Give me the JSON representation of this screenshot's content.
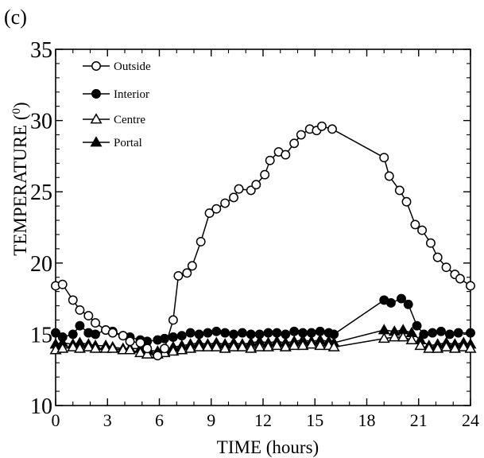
{
  "panel_label": "(c)",
  "chart_data": {
    "type": "line",
    "xlabel": "TIME (hours)",
    "ylabel_prefix": "TEMPERATURE (",
    "ylabel_superscript": "0",
    "ylabel_suffix": ")",
    "xlim": [
      0,
      24
    ],
    "ylim": [
      10,
      35
    ],
    "x_ticks": [
      0,
      3,
      6,
      9,
      12,
      15,
      18,
      21,
      24
    ],
    "y_ticks": [
      10,
      15,
      20,
      25,
      30,
      35
    ],
    "grid": false,
    "legend_position": "top-left",
    "series": [
      {
        "name": "Outside",
        "marker": "circle-open",
        "x": [
          0.0,
          0.4,
          1.0,
          1.4,
          1.9,
          2.3,
          2.9,
          3.3,
          3.9,
          4.3,
          4.9,
          5.3,
          5.9,
          6.3,
          6.8,
          7.1,
          7.6,
          7.9,
          8.4,
          8.9,
          9.3,
          9.8,
          10.3,
          10.6,
          11.3,
          11.6,
          12.1,
          12.4,
          12.9,
          13.3,
          13.8,
          14.2,
          14.7,
          15.1,
          15.4,
          16.0,
          19.0,
          19.3,
          19.9,
          20.3,
          20.8,
          21.2,
          21.7,
          22.1,
          22.6,
          23.1,
          23.4,
          24.0
        ],
        "values": [
          18.4,
          18.5,
          17.4,
          16.7,
          16.3,
          15.8,
          15.3,
          15.1,
          14.9,
          14.5,
          14.4,
          14.0,
          13.5,
          14.0,
          16.0,
          19.1,
          19.3,
          19.8,
          21.5,
          23.5,
          23.8,
          24.2,
          24.6,
          25.2,
          25.1,
          25.5,
          26.2,
          27.2,
          27.8,
          27.6,
          28.4,
          29.0,
          29.4,
          29.3,
          29.6,
          29.4,
          27.4,
          26.1,
          25.1,
          24.3,
          22.7,
          22.3,
          21.4,
          20.4,
          19.7,
          19.2,
          18.9,
          18.4
        ]
      },
      {
        "name": "Interior",
        "marker": "circle-filled",
        "x": [
          0.0,
          0.4,
          1.0,
          1.4,
          1.9,
          2.3,
          2.9,
          3.3,
          3.9,
          4.3,
          4.9,
          5.3,
          5.9,
          6.3,
          6.8,
          7.3,
          7.8,
          8.3,
          8.8,
          9.3,
          9.8,
          10.3,
          10.8,
          11.3,
          11.8,
          12.3,
          12.8,
          13.3,
          13.8,
          14.3,
          14.8,
          15.3,
          15.8,
          16.1,
          19.0,
          19.4,
          20.0,
          20.4,
          20.9,
          21.3,
          21.8,
          22.3,
          22.8,
          23.3,
          24.0
        ],
        "values": [
          15.1,
          14.8,
          15.0,
          15.6,
          15.1,
          15.0,
          15.3,
          15.2,
          14.9,
          14.8,
          14.6,
          14.5,
          14.6,
          14.7,
          14.8,
          14.9,
          15.1,
          15.0,
          15.1,
          15.2,
          15.1,
          15.0,
          15.1,
          15.0,
          15.0,
          15.1,
          15.1,
          15.0,
          15.2,
          15.1,
          15.1,
          15.2,
          15.1,
          15.0,
          17.4,
          17.2,
          17.5,
          17.1,
          15.6,
          15.0,
          15.1,
          15.2,
          15.0,
          15.1,
          15.1
        ]
      },
      {
        "name": "Centre",
        "marker": "triangle-open",
        "x": [
          0.0,
          0.4,
          1.0,
          1.4,
          1.9,
          2.3,
          2.9,
          3.3,
          3.9,
          4.3,
          4.9,
          5.3,
          5.9,
          6.3,
          6.8,
          7.3,
          7.8,
          8.3,
          8.8,
          9.3,
          9.8,
          10.3,
          10.8,
          11.3,
          11.8,
          12.3,
          12.8,
          13.3,
          13.8,
          14.3,
          14.8,
          15.3,
          15.8,
          16.1,
          19.0,
          19.6,
          20.1,
          20.6,
          21.1,
          21.6,
          22.1,
          22.6,
          23.1,
          23.6,
          24.0
        ],
        "values": [
          13.9,
          14.0,
          14.1,
          14.0,
          14.1,
          14.0,
          14.0,
          14.0,
          13.9,
          13.9,
          13.7,
          13.6,
          13.6,
          13.7,
          13.8,
          13.9,
          14.0,
          14.1,
          14.1,
          14.1,
          14.0,
          14.1,
          14.1,
          14.0,
          14.1,
          14.1,
          14.2,
          14.1,
          14.2,
          14.2,
          14.3,
          14.2,
          14.2,
          14.1,
          14.7,
          14.8,
          14.8,
          14.6,
          14.2,
          14.0,
          14.0,
          14.1,
          14.0,
          14.1,
          14.0
        ]
      },
      {
        "name": "Portal",
        "marker": "triangle-filled",
        "x": [
          0.0,
          0.4,
          1.0,
          1.4,
          1.9,
          2.3,
          2.9,
          3.3,
          3.9,
          4.3,
          4.9,
          5.3,
          5.9,
          6.3,
          6.8,
          7.3,
          7.8,
          8.3,
          8.8,
          9.3,
          9.8,
          10.3,
          10.8,
          11.3,
          11.8,
          12.3,
          12.8,
          13.3,
          13.8,
          14.3,
          14.8,
          15.3,
          15.8,
          16.1,
          19.0,
          19.6,
          20.1,
          20.6,
          21.1,
          21.6,
          22.1,
          22.6,
          23.1,
          23.6,
          24.0
        ],
        "values": [
          14.3,
          14.4,
          14.3,
          14.4,
          14.3,
          14.2,
          14.2,
          14.1,
          14.0,
          14.0,
          14.0,
          13.9,
          13.8,
          13.9,
          14.1,
          14.2,
          14.3,
          14.4,
          14.3,
          14.4,
          14.3,
          14.4,
          14.3,
          14.4,
          14.5,
          14.4,
          14.5,
          14.4,
          14.5,
          14.6,
          14.5,
          14.6,
          14.5,
          14.4,
          15.3,
          15.2,
          15.3,
          15.1,
          14.6,
          14.2,
          14.3,
          14.4,
          14.3,
          14.4,
          14.3
        ]
      }
    ]
  }
}
